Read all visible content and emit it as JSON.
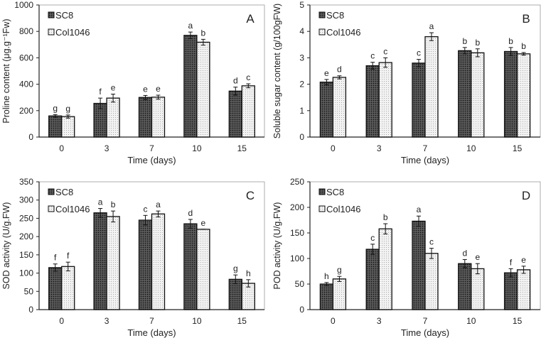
{
  "chart_data": [
    {
      "type": "bar",
      "panel_label": "A",
      "ylabel": "Proline content (μg.g⁻¹Fw)",
      "xlabel": "Time (days)",
      "categories": [
        "0",
        "3",
        "7",
        "10",
        "15"
      ],
      "ylim": [
        0,
        1000
      ],
      "yticks": [
        0,
        200,
        400,
        600,
        800,
        1000
      ],
      "series": [
        {
          "name": "SC8",
          "values": [
            160,
            255,
            300,
            770,
            348
          ],
          "errors": [
            10,
            40,
            15,
            25,
            30
          ],
          "letters": [
            "g",
            "f",
            "e",
            "a",
            "d"
          ]
        },
        {
          "name": "Col1046",
          "values": [
            155,
            295,
            302,
            718,
            388
          ],
          "errors": [
            12,
            30,
            15,
            22,
            15
          ],
          "letters": [
            "g",
            "e",
            "e",
            "b",
            "c"
          ]
        }
      ]
    },
    {
      "type": "bar",
      "panel_label": "B",
      "ylabel": "Soluble sugar content (g/100gFW)",
      "xlabel": "Time (days)",
      "categories": [
        "0",
        "3",
        "7",
        "10",
        "15"
      ],
      "ylim": [
        0,
        5
      ],
      "yticks": [
        0,
        1,
        2,
        3,
        4,
        5
      ],
      "series": [
        {
          "name": "SC8",
          "values": [
            2.08,
            2.7,
            2.8,
            3.27,
            3.24
          ],
          "errors": [
            0.1,
            0.13,
            0.14,
            0.12,
            0.15
          ],
          "letters": [
            "e",
            "c",
            "c",
            "b",
            "b"
          ]
        },
        {
          "name": "Col1046",
          "values": [
            2.26,
            2.82,
            3.8,
            3.19,
            3.15
          ],
          "errors": [
            0.06,
            0.18,
            0.15,
            0.15,
            0.05
          ],
          "letters": [
            "d",
            "c",
            "a",
            "b",
            "b"
          ]
        }
      ]
    },
    {
      "type": "bar",
      "panel_label": "C",
      "ylabel": "SOD activity (U/g.FW)",
      "xlabel": "Time (days)",
      "categories": [
        "0",
        "3",
        "7",
        "10",
        "15"
      ],
      "ylim": [
        0,
        350
      ],
      "yticks": [
        0,
        50,
        100,
        150,
        200,
        250,
        300,
        350
      ],
      "series": [
        {
          "name": "SC8",
          "values": [
            115,
            265,
            245,
            235,
            83
          ],
          "errors": [
            10,
            12,
            13,
            12,
            12
          ],
          "letters": [
            "f",
            "a",
            "c",
            "d",
            "g"
          ]
        },
        {
          "name": "Col1046",
          "values": [
            118,
            255,
            262,
            220,
            72
          ],
          "errors": [
            12,
            15,
            8,
            0,
            10
          ],
          "letters": [
            "f",
            "b",
            "a",
            "e",
            "h"
          ]
        }
      ]
    },
    {
      "type": "bar",
      "panel_label": "D",
      "ylabel": "POD activity (U/g.FW)",
      "xlabel": "Time (days)",
      "categories": [
        "0",
        "3",
        "7",
        "10",
        "15"
      ],
      "ylim": [
        0,
        250
      ],
      "yticks": [
        0,
        50,
        100,
        150,
        200,
        250
      ],
      "series": [
        {
          "name": "SC8",
          "values": [
            50,
            118,
            173,
            90,
            72
          ],
          "errors": [
            3,
            10,
            10,
            8,
            8
          ],
          "letters": [
            "h",
            "c",
            "a",
            "d",
            "f"
          ]
        },
        {
          "name": "Col1046",
          "values": [
            60,
            158,
            110,
            80,
            78
          ],
          "errors": [
            5,
            10,
            10,
            10,
            7
          ],
          "letters": [
            "g",
            "b",
            "c",
            "e",
            "e"
          ]
        }
      ]
    }
  ],
  "colors": {
    "SC8": "#3a3a3a",
    "Col1046": "#e8e8e8",
    "axis": "#222222"
  }
}
